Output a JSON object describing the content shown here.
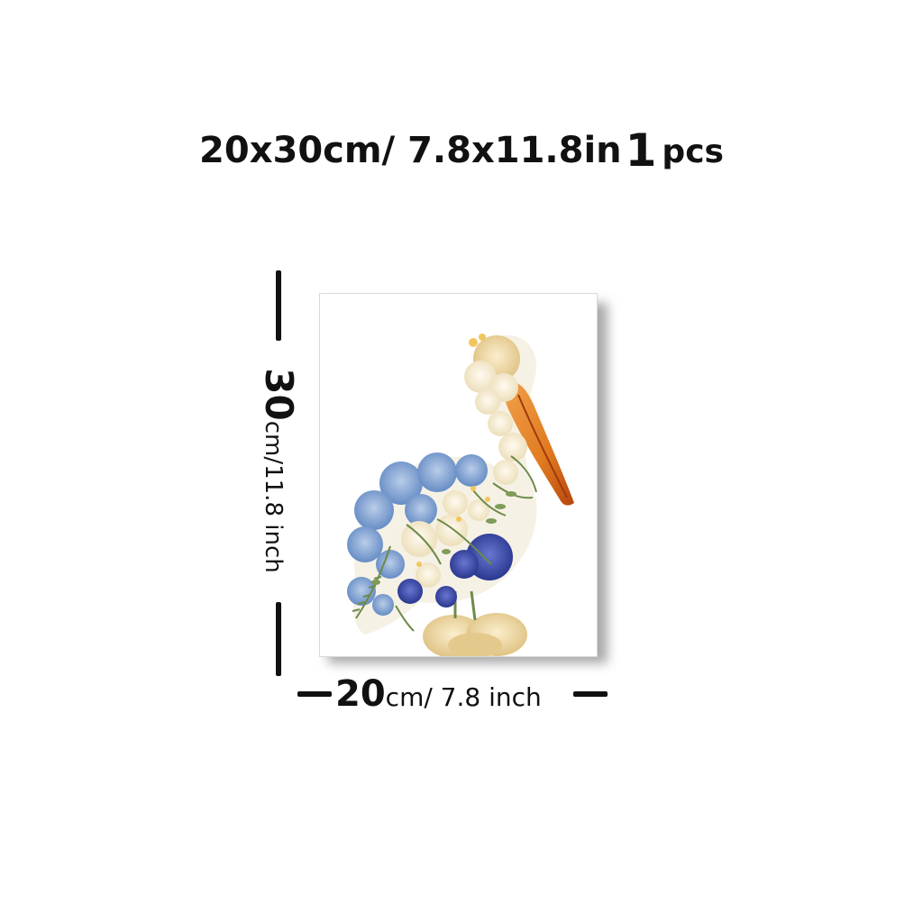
{
  "title": {
    "size_text": "20x30cm/ 7.8x11.8in",
    "quantity": "1",
    "quantity_unit": "pcs"
  },
  "height_dimension": {
    "value": "30",
    "unit_text": "cm/11.8 inch"
  },
  "width_dimension": {
    "value": "20",
    "unit_text": "cm/ 7.8 inch"
  },
  "artwork": {
    "subject": "pressed-flower pelican",
    "colors": {
      "blue_petal": "#6f93c9",
      "deep_blue": "#2f3f9c",
      "cream_petal": "#f2e6c4",
      "yellow_petal": "#e9d29a",
      "beak_orange": "#e07a1f",
      "beak_red": "#c44f12",
      "leaf_green": "#6d8a4a"
    }
  }
}
